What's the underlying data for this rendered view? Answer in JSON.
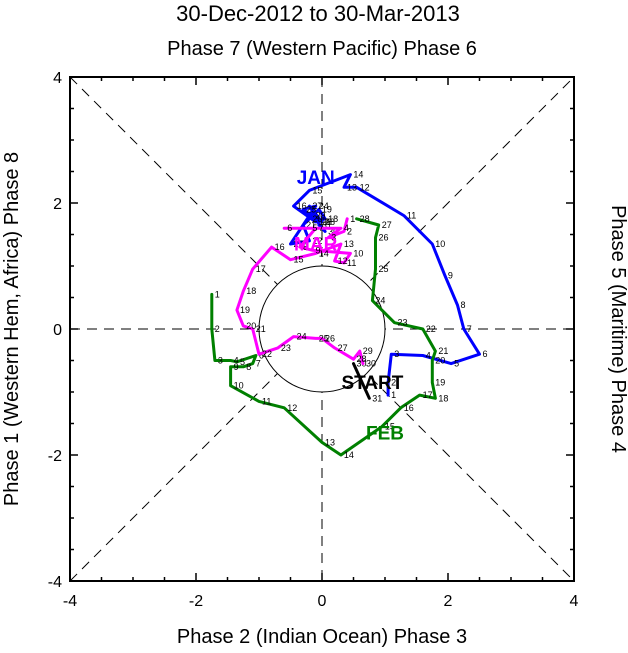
{
  "chart_data": {
    "type": "line",
    "title": "30-Dec-2012 to 30-Mar-2013",
    "top_label": "Phase 7 (Western Pacific) Phase 6",
    "bottom_label": "Phase 2 (Indian Ocean) Phase 3",
    "left_label": "Phase 1 (Western Hem, Africa) Phase 8",
    "right_label": "Phase 5 (Maritime) Phase 4",
    "xlim": [
      -4,
      4
    ],
    "ylim": [
      -4,
      4
    ],
    "x_ticks": [
      -4,
      -2,
      0,
      2,
      4
    ],
    "y_ticks": [
      -4,
      -2,
      0,
      2,
      4
    ],
    "x_tick_labels": [
      "-4",
      "-2",
      "0",
      "2",
      "4"
    ],
    "y_tick_labels": [
      "-4",
      "-2",
      "0",
      "2",
      "4"
    ],
    "unit_circle_radius": 1,
    "annotations": [
      {
        "text": "START",
        "x": 0.8,
        "y": -0.95,
        "color": "#000000"
      }
    ],
    "series": [
      {
        "name": "Dec",
        "color": "#000000",
        "points": [
          {
            "day": "30",
            "x": 0.5,
            "y": -0.55
          },
          {
            "day": "31",
            "x": 0.75,
            "y": -1.1
          }
        ]
      },
      {
        "name": "JAN",
        "label": "JAN",
        "color": "#0000ff",
        "label_pos": {
          "x": -0.1,
          "y": 2.3
        },
        "points": [
          {
            "day": "1",
            "x": 1.05,
            "y": -1.05
          },
          {
            "day": "2",
            "x": 1.05,
            "y": -0.85
          },
          {
            "day": "3",
            "x": 1.1,
            "y": -0.4
          },
          {
            "day": "4",
            "x": 1.6,
            "y": -0.42
          },
          {
            "day": "5",
            "x": 2.05,
            "y": -0.55
          },
          {
            "day": "6",
            "x": 2.5,
            "y": -0.4
          },
          {
            "day": "7",
            "x": 2.25,
            "y": 0.0
          },
          {
            "day": "8",
            "x": 2.15,
            "y": 0.38
          },
          {
            "day": "9",
            "x": 1.95,
            "y": 0.85
          },
          {
            "day": "10",
            "x": 1.75,
            "y": 1.35
          },
          {
            "day": "11",
            "x": 1.3,
            "y": 1.8
          },
          {
            "day": "12",
            "x": 0.55,
            "y": 2.25
          },
          {
            "day": "13",
            "x": 0.35,
            "y": 2.25
          },
          {
            "day": "14",
            "x": 0.45,
            "y": 2.45
          },
          {
            "day": "15",
            "x": -0.2,
            "y": 2.2
          },
          {
            "day": "16",
            "x": -0.45,
            "y": 1.95
          },
          {
            "day": "17",
            "x": -0.1,
            "y": 1.7
          },
          {
            "day": "18",
            "x": 0.05,
            "y": 1.75
          },
          {
            "day": "19",
            "x": -0.05,
            "y": 1.9
          },
          {
            "day": "20",
            "x": -0.2,
            "y": 1.75
          },
          {
            "day": "21",
            "x": -0.3,
            "y": 1.65
          },
          {
            "day": "22",
            "x": -0.2,
            "y": 1.4
          },
          {
            "day": "23",
            "x": -0.5,
            "y": 1.35
          },
          {
            "day": "24",
            "x": -0.1,
            "y": 1.95
          },
          {
            "day": "25",
            "x": -0.3,
            "y": 1.9
          },
          {
            "day": "26",
            "x": -0.05,
            "y": 1.7
          },
          {
            "day": "27",
            "x": -0.2,
            "y": 1.95
          },
          {
            "day": "28",
            "x": 0.0,
            "y": 1.7
          },
          {
            "day": "29",
            "x": -0.15,
            "y": 1.8
          },
          {
            "day": "30",
            "x": 0.05,
            "y": 1.55
          },
          {
            "day": "31",
            "x": -0.05,
            "y": 1.65
          }
        ]
      },
      {
        "name": "FEB",
        "label": "FEB",
        "color": "#008000",
        "label_pos": {
          "x": 1.0,
          "y": -1.75
        },
        "points": [
          {
            "day": "1",
            "x": -1.75,
            "y": 0.55
          },
          {
            "day": "2",
            "x": -1.75,
            "y": 0.0
          },
          {
            "day": "3",
            "x": -1.7,
            "y": -0.5
          },
          {
            "day": "4",
            "x": -1.45,
            "y": -0.5
          },
          {
            "day": "5",
            "x": -1.35,
            "y": -0.52
          },
          {
            "day": "6",
            "x": -1.05,
            "y": -0.42
          },
          {
            "day": "7",
            "x": -1.1,
            "y": -0.55
          },
          {
            "day": "8",
            "x": -1.25,
            "y": -0.6
          },
          {
            "day": "9",
            "x": -1.45,
            "y": -0.6
          },
          {
            "day": "10",
            "x": -1.45,
            "y": -0.9
          },
          {
            "day": "11",
            "x": -1.0,
            "y": -1.15
          },
          {
            "day": "12",
            "x": -0.6,
            "y": -1.25
          },
          {
            "day": "13",
            "x": 0.0,
            "y": -1.8
          },
          {
            "day": "14",
            "x": 0.3,
            "y": -2.0
          },
          {
            "day": "15",
            "x": 0.95,
            "y": -1.55
          },
          {
            "day": "16",
            "x": 1.25,
            "y": -1.25
          },
          {
            "day": "17",
            "x": 1.55,
            "y": -1.05
          },
          {
            "day": "18",
            "x": 1.8,
            "y": -1.1
          },
          {
            "day": "19",
            "x": 1.75,
            "y": -0.85
          },
          {
            "day": "20",
            "x": 1.75,
            "y": -0.5
          },
          {
            "day": "21",
            "x": 1.8,
            "y": -0.35
          },
          {
            "day": "22",
            "x": 1.6,
            "y": 0.0
          },
          {
            "day": "23",
            "x": 1.15,
            "y": 0.1
          },
          {
            "day": "24",
            "x": 0.8,
            "y": 0.45
          },
          {
            "day": "25",
            "x": 0.85,
            "y": 0.95
          },
          {
            "day": "26",
            "x": 0.85,
            "y": 1.45
          },
          {
            "day": "27",
            "x": 0.9,
            "y": 1.65
          },
          {
            "day": "28",
            "x": 0.55,
            "y": 1.75
          }
        ]
      },
      {
        "name": "MAR",
        "label": "MAR",
        "color": "#ff00ff",
        "label_pos": {
          "x": -0.1,
          "y": 1.25
        },
        "points": [
          {
            "day": "1",
            "x": 0.4,
            "y": 1.75
          },
          {
            "day": "2",
            "x": 0.35,
            "y": 1.55
          },
          {
            "day": "3",
            "x": 0.1,
            "y": 1.45
          },
          {
            "day": "4",
            "x": 0.3,
            "y": 1.6
          },
          {
            "day": "5",
            "x": -0.2,
            "y": 1.6
          },
          {
            "day": "6",
            "x": -0.6,
            "y": 1.6
          },
          {
            "day": "7",
            "x": -0.1,
            "y": 1.6
          },
          {
            "day": "8",
            "x": -0.35,
            "y": 1.3
          },
          {
            "day": "9",
            "x": -0.15,
            "y": 1.25
          },
          {
            "day": "10",
            "x": 0.45,
            "y": 1.2
          },
          {
            "day": "11",
            "x": 0.35,
            "y": 1.05
          },
          {
            "day": "12",
            "x": 0.2,
            "y": 1.08
          },
          {
            "day": "13",
            "x": 0.3,
            "y": 1.35
          },
          {
            "day": "14",
            "x": -0.1,
            "y": 1.2
          },
          {
            "day": "15",
            "x": -0.5,
            "y": 1.1
          },
          {
            "day": "16",
            "x": -0.8,
            "y": 1.3
          },
          {
            "day": "17",
            "x": -1.1,
            "y": 0.95
          },
          {
            "day": "18",
            "x": -1.25,
            "y": 0.6
          },
          {
            "day": "19",
            "x": -1.35,
            "y": 0.3
          },
          {
            "day": "20",
            "x": -1.25,
            "y": 0.05
          },
          {
            "day": "21",
            "x": -1.1,
            "y": 0.0
          },
          {
            "day": "22",
            "x": -1.0,
            "y": -0.4
          },
          {
            "day": "23",
            "x": -0.7,
            "y": -0.3
          },
          {
            "day": "24",
            "x": -0.45,
            "y": -0.12
          },
          {
            "day": "25",
            "x": -0.1,
            "y": -0.15
          },
          {
            "day": "26",
            "x": 0.0,
            "y": -0.15
          },
          {
            "day": "27",
            "x": 0.2,
            "y": -0.3
          },
          {
            "day": "28",
            "x": 0.5,
            "y": -0.48
          },
          {
            "day": "29",
            "x": 0.6,
            "y": -0.35
          },
          {
            "day": "30",
            "x": 0.65,
            "y": -0.55
          }
        ]
      }
    ]
  }
}
